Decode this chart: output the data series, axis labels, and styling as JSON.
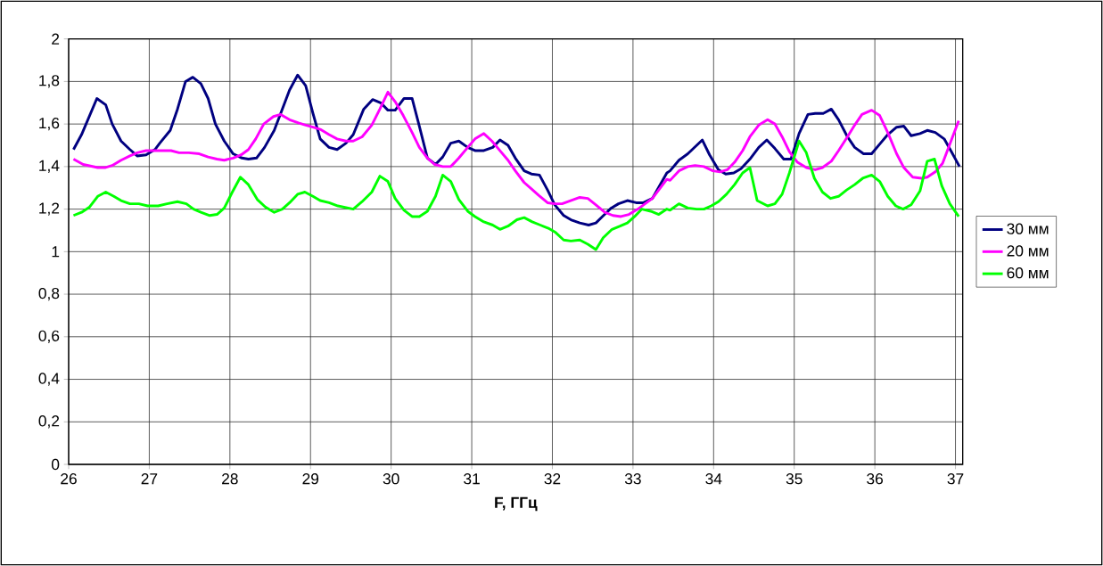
{
  "chart_data": {
    "type": "line",
    "xlabel": "F, ГГц",
    "xlim": [
      26,
      37.09
    ],
    "ylim": [
      0,
      2
    ],
    "xticks": [
      26,
      27,
      28,
      29,
      30,
      31,
      32,
      33,
      34,
      35,
      36,
      37
    ],
    "yticks": [
      0,
      {
        "value": 0.2,
        "label": "0,2"
      },
      {
        "value": 0.4,
        "label": "0,4"
      },
      {
        "value": 0.6,
        "label": "0,6"
      },
      {
        "value": 0.8,
        "label": "0,8"
      },
      1,
      {
        "value": 1.2,
        "label": "1,2"
      },
      {
        "value": 1.4,
        "label": "1,4"
      },
      {
        "value": 1.6,
        "label": "1,6"
      },
      {
        "value": 1.8,
        "label": "1,8"
      },
      2
    ],
    "grid": true,
    "legend": "right",
    "marker": "none",
    "line_style": "solid",
    "series": [
      {
        "name": "30 мм",
        "color": "#000080",
        "x": [
          26.06,
          26.16,
          26.35,
          26.46,
          26.54,
          26.65,
          26.76,
          26.85,
          26.96,
          27.07,
          27.13,
          27.26,
          27.35,
          27.45,
          27.54,
          27.64,
          27.73,
          27.82,
          27.93,
          28.04,
          28.15,
          28.23,
          28.33,
          28.43,
          28.55,
          28.65,
          28.74,
          28.84,
          28.94,
          29.03,
          29.12,
          29.23,
          29.33,
          29.44,
          29.53,
          29.66,
          29.77,
          29.87,
          29.96,
          30.05,
          30.16,
          30.26,
          30.35,
          30.45,
          30.55,
          30.64,
          30.74,
          30.84,
          30.95,
          31.04,
          31.15,
          31.26,
          31.35,
          31.45,
          31.54,
          31.65,
          31.74,
          31.84,
          31.94,
          32.03,
          32.14,
          32.23,
          32.34,
          32.45,
          32.54,
          32.62,
          32.73,
          32.82,
          32.93,
          33.04,
          33.13,
          33.24,
          33.42,
          33.46,
          33.57,
          33.68,
          33.86,
          33.95,
          34.06,
          34.15,
          34.25,
          34.34,
          34.45,
          34.56,
          34.66,
          34.76,
          34.87,
          34.96,
          35.06,
          35.17,
          35.26,
          35.36,
          35.46,
          35.55,
          35.66,
          35.75,
          35.86,
          35.96,
          36.07,
          36.16,
          36.27,
          36.36,
          36.45,
          36.56,
          36.65,
          36.75,
          36.86,
          36.95,
          37.05
        ],
        "values": [
          1.48,
          1.55,
          1.72,
          1.69,
          1.6,
          1.52,
          1.48,
          1.45,
          1.455,
          1.48,
          1.51,
          1.57,
          1.67,
          1.8,
          1.82,
          1.79,
          1.72,
          1.6,
          1.52,
          1.46,
          1.44,
          1.435,
          1.44,
          1.49,
          1.57,
          1.67,
          1.76,
          1.83,
          1.78,
          1.65,
          1.53,
          1.49,
          1.48,
          1.51,
          1.55,
          1.67,
          1.715,
          1.7,
          1.665,
          1.665,
          1.72,
          1.72,
          1.59,
          1.44,
          1.41,
          1.445,
          1.51,
          1.52,
          1.49,
          1.475,
          1.475,
          1.49,
          1.525,
          1.5,
          1.44,
          1.38,
          1.365,
          1.36,
          1.29,
          1.22,
          1.17,
          1.15,
          1.135,
          1.125,
          1.135,
          1.165,
          1.205,
          1.225,
          1.24,
          1.23,
          1.23,
          1.25,
          1.37,
          1.38,
          1.43,
          1.46,
          1.525,
          1.455,
          1.385,
          1.365,
          1.37,
          1.39,
          1.435,
          1.49,
          1.525,
          1.485,
          1.435,
          1.435,
          1.555,
          1.645,
          1.65,
          1.65,
          1.67,
          1.62,
          1.54,
          1.49,
          1.46,
          1.46,
          1.51,
          1.55,
          1.585,
          1.59,
          1.545,
          1.555,
          1.57,
          1.56,
          1.53,
          1.47,
          1.4
        ]
      },
      {
        "name": "20 мм",
        "color": "#ff00ff",
        "x": [
          26.06,
          26.18,
          26.36,
          26.45,
          26.54,
          26.65,
          26.76,
          26.85,
          26.96,
          27.05,
          27.16,
          27.27,
          27.37,
          27.49,
          27.62,
          27.73,
          27.84,
          27.93,
          28.04,
          28.14,
          28.23,
          28.32,
          28.42,
          28.54,
          28.63,
          28.74,
          28.85,
          28.94,
          29.03,
          29.12,
          29.23,
          29.33,
          29.44,
          29.53,
          29.64,
          29.76,
          29.86,
          29.96,
          30.05,
          30.15,
          30.26,
          30.35,
          30.45,
          30.54,
          30.64,
          30.74,
          30.84,
          30.95,
          31.04,
          31.15,
          31.25,
          31.36,
          31.45,
          31.54,
          31.65,
          31.74,
          31.83,
          31.94,
          32.03,
          32.12,
          32.23,
          32.34,
          32.44,
          32.54,
          32.65,
          32.75,
          32.85,
          32.95,
          33.06,
          33.15,
          33.24,
          33.42,
          33.46,
          33.57,
          33.68,
          33.77,
          33.88,
          33.99,
          34.08,
          34.17,
          34.26,
          34.36,
          34.45,
          34.56,
          34.67,
          34.76,
          34.85,
          34.94,
          35.04,
          35.15,
          35.26,
          35.35,
          35.46,
          35.55,
          35.66,
          35.75,
          35.84,
          35.96,
          36.06,
          36.16,
          36.27,
          36.36,
          36.47,
          36.58,
          36.65,
          36.75,
          36.84,
          36.93,
          37.04
        ],
        "values": [
          1.435,
          1.41,
          1.395,
          1.395,
          1.405,
          1.43,
          1.45,
          1.465,
          1.475,
          1.475,
          1.475,
          1.475,
          1.465,
          1.465,
          1.46,
          1.445,
          1.435,
          1.43,
          1.44,
          1.455,
          1.48,
          1.53,
          1.6,
          1.635,
          1.645,
          1.62,
          1.605,
          1.595,
          1.585,
          1.575,
          1.55,
          1.53,
          1.52,
          1.52,
          1.54,
          1.595,
          1.67,
          1.75,
          1.705,
          1.64,
          1.56,
          1.49,
          1.44,
          1.41,
          1.4,
          1.4,
          1.44,
          1.49,
          1.53,
          1.555,
          1.52,
          1.47,
          1.43,
          1.38,
          1.325,
          1.295,
          1.265,
          1.23,
          1.225,
          1.225,
          1.24,
          1.255,
          1.25,
          1.22,
          1.185,
          1.17,
          1.165,
          1.175,
          1.2,
          1.225,
          1.25,
          1.34,
          1.335,
          1.38,
          1.4,
          1.405,
          1.4,
          1.38,
          1.375,
          1.385,
          1.42,
          1.475,
          1.54,
          1.595,
          1.62,
          1.6,
          1.54,
          1.47,
          1.42,
          1.395,
          1.385,
          1.395,
          1.425,
          1.475,
          1.54,
          1.595,
          1.645,
          1.665,
          1.64,
          1.56,
          1.46,
          1.395,
          1.35,
          1.345,
          1.35,
          1.375,
          1.415,
          1.505,
          1.615
        ]
      },
      {
        "name": "60 мм",
        "color": "#00ff00",
        "x": [
          26.06,
          26.16,
          26.26,
          26.36,
          26.46,
          26.56,
          26.65,
          26.76,
          26.87,
          26.98,
          27.11,
          27.22,
          27.35,
          27.46,
          27.55,
          27.64,
          27.75,
          27.84,
          27.93,
          28.03,
          28.13,
          28.23,
          28.34,
          28.44,
          28.55,
          28.65,
          28.74,
          28.84,
          28.93,
          29.03,
          29.12,
          29.23,
          29.34,
          29.53,
          29.64,
          29.76,
          29.86,
          29.96,
          30.05,
          30.16,
          30.26,
          30.35,
          30.45,
          30.55,
          30.64,
          30.74,
          30.84,
          30.95,
          31.04,
          31.15,
          31.26,
          31.35,
          31.45,
          31.56,
          31.65,
          31.75,
          31.85,
          31.95,
          32.04,
          32.14,
          32.23,
          32.34,
          32.44,
          32.54,
          32.63,
          32.74,
          32.84,
          32.93,
          33.02,
          33.11,
          33.22,
          33.32,
          33.42,
          33.46,
          33.57,
          33.68,
          33.79,
          33.88,
          33.97,
          34.06,
          34.16,
          34.26,
          34.36,
          34.45,
          34.54,
          34.67,
          34.76,
          34.85,
          34.94,
          35.06,
          35.15,
          35.25,
          35.35,
          35.45,
          35.55,
          35.65,
          35.75,
          35.85,
          35.96,
          36.06,
          36.16,
          36.26,
          36.35,
          36.45,
          36.56,
          36.65,
          36.74,
          36.83,
          36.93,
          37.04
        ],
        "values": [
          1.17,
          1.185,
          1.21,
          1.26,
          1.28,
          1.26,
          1.24,
          1.225,
          1.225,
          1.215,
          1.215,
          1.225,
          1.235,
          1.225,
          1.2,
          1.185,
          1.17,
          1.175,
          1.205,
          1.28,
          1.35,
          1.315,
          1.245,
          1.21,
          1.185,
          1.2,
          1.23,
          1.27,
          1.28,
          1.26,
          1.24,
          1.23,
          1.215,
          1.2,
          1.235,
          1.28,
          1.355,
          1.33,
          1.25,
          1.195,
          1.165,
          1.165,
          1.19,
          1.26,
          1.36,
          1.33,
          1.245,
          1.19,
          1.165,
          1.14,
          1.125,
          1.105,
          1.12,
          1.15,
          1.16,
          1.14,
          1.125,
          1.11,
          1.09,
          1.055,
          1.05,
          1.055,
          1.035,
          1.01,
          1.065,
          1.105,
          1.12,
          1.135,
          1.165,
          1.2,
          1.19,
          1.175,
          1.2,
          1.195,
          1.225,
          1.205,
          1.2,
          1.2,
          1.215,
          1.235,
          1.27,
          1.315,
          1.37,
          1.395,
          1.24,
          1.215,
          1.225,
          1.27,
          1.37,
          1.52,
          1.465,
          1.345,
          1.28,
          1.25,
          1.26,
          1.29,
          1.315,
          1.345,
          1.36,
          1.33,
          1.26,
          1.215,
          1.2,
          1.22,
          1.285,
          1.425,
          1.435,
          1.31,
          1.225,
          1.165
        ]
      }
    ]
  }
}
